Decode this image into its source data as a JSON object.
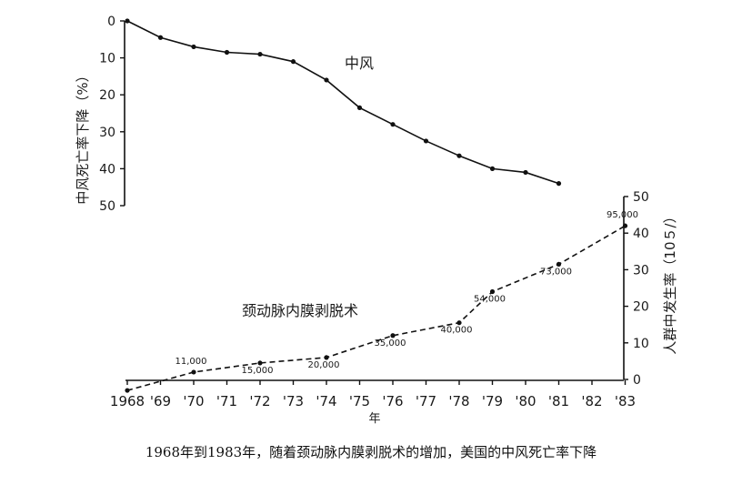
{
  "caption": "1968年到1983年，随着颈动脉内膜剥脱术的增加，美国的中风死亡率下降",
  "chart_data": {
    "type": "line",
    "xlabel": "年",
    "x_tick_labels": [
      "1968",
      "'69",
      "'70",
      "'71",
      "'72",
      "'73",
      "'74",
      "'75",
      "'76",
      "'77",
      "'78",
      "'79",
      "'80",
      "'81",
      "'82",
      "'83"
    ],
    "x_years": [
      1968,
      1969,
      1970,
      1971,
      1972,
      1973,
      1974,
      1975,
      1976,
      1977,
      1978,
      1979,
      1980,
      1981,
      1982,
      1983
    ],
    "left_axis": {
      "label": "中风死亡率下降（%）",
      "ticks": [
        0,
        10,
        20,
        30,
        40,
        50
      ],
      "range": [
        0,
        50
      ],
      "inverted": true
    },
    "right_axis": {
      "label": "人群中发生率（10５/）",
      "ticks": [
        0,
        10,
        20,
        30,
        40,
        50
      ],
      "range": [
        0,
        50
      ]
    },
    "series": [
      {
        "name": "中风",
        "axis": "left",
        "style": "solid",
        "x": [
          1968,
          1969,
          1970,
          1971,
          1972,
          1973,
          1974,
          1975,
          1976,
          1977,
          1978,
          1979,
          1980,
          1981
        ],
        "values": [
          0,
          4.5,
          7,
          8.5,
          9,
          11,
          16,
          23.5,
          28,
          32.5,
          36.5,
          40,
          41,
          44
        ]
      },
      {
        "name": "颈动脉内膜剥脱术",
        "axis": "right",
        "style": "dashed",
        "x": [
          1968,
          1970,
          1972,
          1974,
          1976,
          1978,
          1979,
          1981,
          1983
        ],
        "values": [
          -3,
          2,
          4.5,
          6,
          12,
          15.5,
          24,
          31.5,
          42
        ],
        "point_labels": [
          "",
          "11,000",
          "15,000",
          "20,000",
          "35,000",
          "40,000",
          "54,000",
          "73,000",
          "95,000"
        ]
      }
    ]
  }
}
